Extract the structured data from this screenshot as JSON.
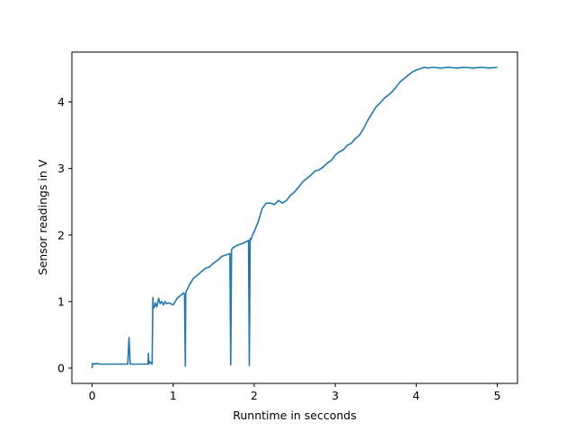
{
  "chart_data": {
    "type": "line",
    "title": "",
    "xlabel": "Runntime in secconds",
    "ylabel": "Sensor readings in V",
    "xlim": [
      -0.25,
      5.25
    ],
    "ylim": [
      -0.23,
      4.75
    ],
    "grid": false,
    "legend": "none",
    "line_color": "#1f77b4",
    "x_ticks": [
      0,
      1,
      2,
      3,
      4,
      5
    ],
    "y_ticks": [
      0,
      1,
      2,
      3,
      4
    ],
    "x_tick_labels": [
      "0",
      "1",
      "2",
      "3",
      "4",
      "5"
    ],
    "y_tick_labels": [
      "0",
      "1",
      "2",
      "3",
      "4"
    ],
    "series": [
      {
        "x": [
          0.0,
          0.005,
          0.01,
          0.05,
          0.1,
          0.15,
          0.2,
          0.25,
          0.3,
          0.35,
          0.4,
          0.44,
          0.455,
          0.47,
          0.5,
          0.55,
          0.6,
          0.65,
          0.69,
          0.695,
          0.7,
          0.705,
          0.74,
          0.75,
          0.755,
          0.77,
          0.78,
          0.8,
          0.82,
          0.84,
          0.86,
          0.88,
          0.9,
          0.92,
          0.95,
          1.0,
          1.05,
          1.1,
          1.13,
          1.14,
          1.15,
          1.155,
          1.16,
          1.2,
          1.25,
          1.3,
          1.35,
          1.4,
          1.45,
          1.5,
          1.55,
          1.6,
          1.65,
          1.7,
          1.71,
          1.72,
          1.73,
          1.75,
          1.8,
          1.85,
          1.9,
          1.93,
          1.94,
          1.95,
          1.96,
          1.98,
          2.0,
          2.05,
          2.1,
          2.15,
          2.2,
          2.25,
          2.3,
          2.35,
          2.4,
          2.45,
          2.5,
          2.55,
          2.6,
          2.65,
          2.7,
          2.75,
          2.8,
          2.85,
          2.9,
          2.95,
          3.0,
          3.05,
          3.1,
          3.15,
          3.2,
          3.25,
          3.3,
          3.35,
          3.4,
          3.45,
          3.5,
          3.55,
          3.6,
          3.65,
          3.7,
          3.75,
          3.8,
          3.85,
          3.9,
          3.95,
          4.0,
          4.05,
          4.1,
          4.15,
          4.2,
          4.3,
          4.4,
          4.5,
          4.6,
          4.7,
          4.8,
          4.9,
          5.0
        ],
        "y": [
          0.0,
          0.07,
          0.06,
          0.07,
          0.06,
          0.06,
          0.06,
          0.06,
          0.06,
          0.06,
          0.06,
          0.06,
          0.46,
          0.06,
          0.06,
          0.06,
          0.06,
          0.06,
          0.06,
          0.22,
          0.06,
          0.1,
          0.06,
          1.06,
          0.9,
          0.92,
          0.98,
          0.92,
          1.05,
          0.97,
          1.0,
          0.95,
          1.0,
          0.97,
          0.98,
          0.95,
          1.05,
          1.1,
          1.13,
          1.1,
          0.03,
          1.12,
          1.15,
          1.25,
          1.35,
          1.4,
          1.45,
          1.5,
          1.52,
          1.58,
          1.62,
          1.68,
          1.7,
          1.72,
          0.05,
          1.78,
          1.8,
          1.82,
          1.85,
          1.87,
          1.9,
          1.92,
          0.04,
          1.95,
          1.93,
          2.0,
          2.05,
          2.2,
          2.4,
          2.48,
          2.48,
          2.46,
          2.52,
          2.48,
          2.52,
          2.6,
          2.65,
          2.72,
          2.8,
          2.85,
          2.9,
          2.96,
          2.98,
          3.02,
          3.08,
          3.12,
          3.2,
          3.25,
          3.28,
          3.35,
          3.38,
          3.45,
          3.5,
          3.6,
          3.72,
          3.82,
          3.92,
          3.98,
          4.05,
          4.1,
          4.15,
          4.22,
          4.3,
          4.35,
          4.4,
          4.45,
          4.48,
          4.5,
          4.52,
          4.51,
          4.52,
          4.51,
          4.52,
          4.51,
          4.52,
          4.51,
          4.52,
          4.51,
          4.52
        ]
      }
    ]
  }
}
